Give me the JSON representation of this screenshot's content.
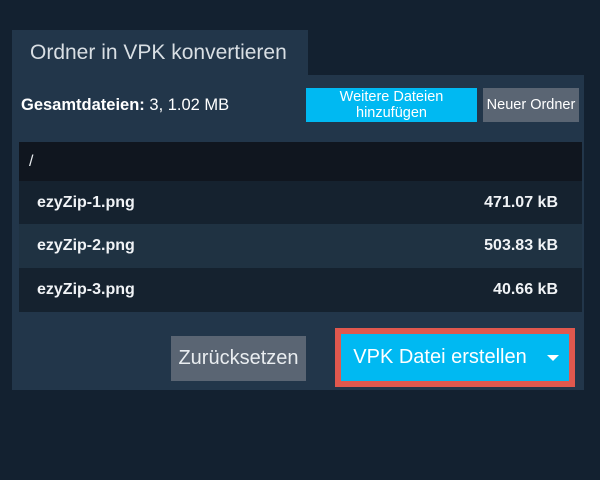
{
  "colors": {
    "background": "#132130",
    "panel": "#22364a",
    "accent_cyan": "#00b9f2",
    "button_gray": "#5a6573",
    "highlight_border": "#e0584e",
    "path_row": "#10161f",
    "row_dark": "#15222f",
    "row_light": "#1f3242"
  },
  "dialog": {
    "title": "Ordner in VPK konvertieren",
    "summary": {
      "label": "Gesamtdateien:",
      "value": "3, 1.02 MB"
    },
    "toolbar": {
      "add_files": "Weitere Dateien hinzufügen",
      "new_folder": "Neuer Ordner"
    },
    "file_list": {
      "root_path": "/",
      "files": [
        {
          "name": "ezyZip-1.png",
          "size": "471.07 kB"
        },
        {
          "name": "ezyZip-2.png",
          "size": "503.83 kB"
        },
        {
          "name": "ezyZip-3.png",
          "size": "40.66 kB"
        }
      ]
    },
    "footer": {
      "reset": "Zurücksetzen",
      "create": "VPK Datei erstellen",
      "dropdown_icon": "chevron-down"
    }
  }
}
